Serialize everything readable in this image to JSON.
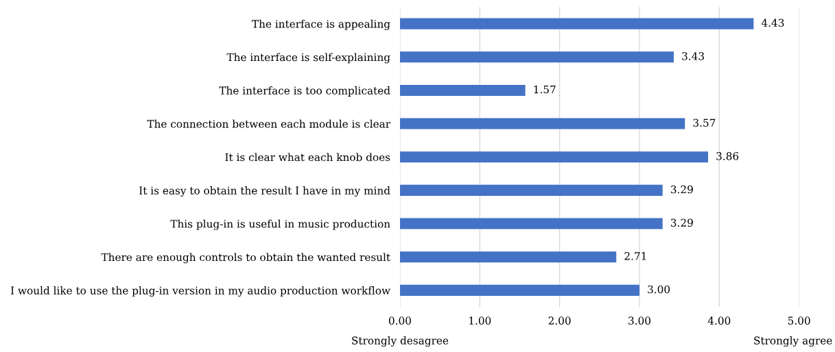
{
  "chart_data": {
    "type": "bar",
    "orientation": "horizontal",
    "categories": [
      "The interface is appealing",
      "The interface is self-explaining",
      "The interface is too complicated",
      "The connection between each module is clear",
      "It is clear what each knob does",
      "It is easy to obtain the result I have in my mind",
      "This plug-in is useful in music production",
      "There are enough controls to obtain the wanted result",
      "I would like to use the plug-in version in my audio production workflow"
    ],
    "values": [
      4.43,
      3.43,
      1.57,
      3.57,
      3.86,
      3.29,
      3.29,
      2.71,
      3.0
    ],
    "value_labels": [
      "4.43",
      "3.43",
      "1.57",
      "3.57",
      "3.86",
      "3.29",
      "3.29",
      "2.71",
      "3.00"
    ],
    "color": "#4472c4",
    "xlim": [
      0,
      5
    ],
    "xticks": [
      {
        "value": 0,
        "label": "0.00"
      },
      {
        "value": 1,
        "label": "1.00"
      },
      {
        "value": 2,
        "label": "2.00"
      },
      {
        "value": 3,
        "label": "3.00"
      },
      {
        "value": 4,
        "label": "4.00"
      },
      {
        "value": 5,
        "label": "5.00"
      }
    ],
    "grid": "x",
    "annotations": [
      "Strongly desagree",
      "Strongly agree"
    ]
  }
}
